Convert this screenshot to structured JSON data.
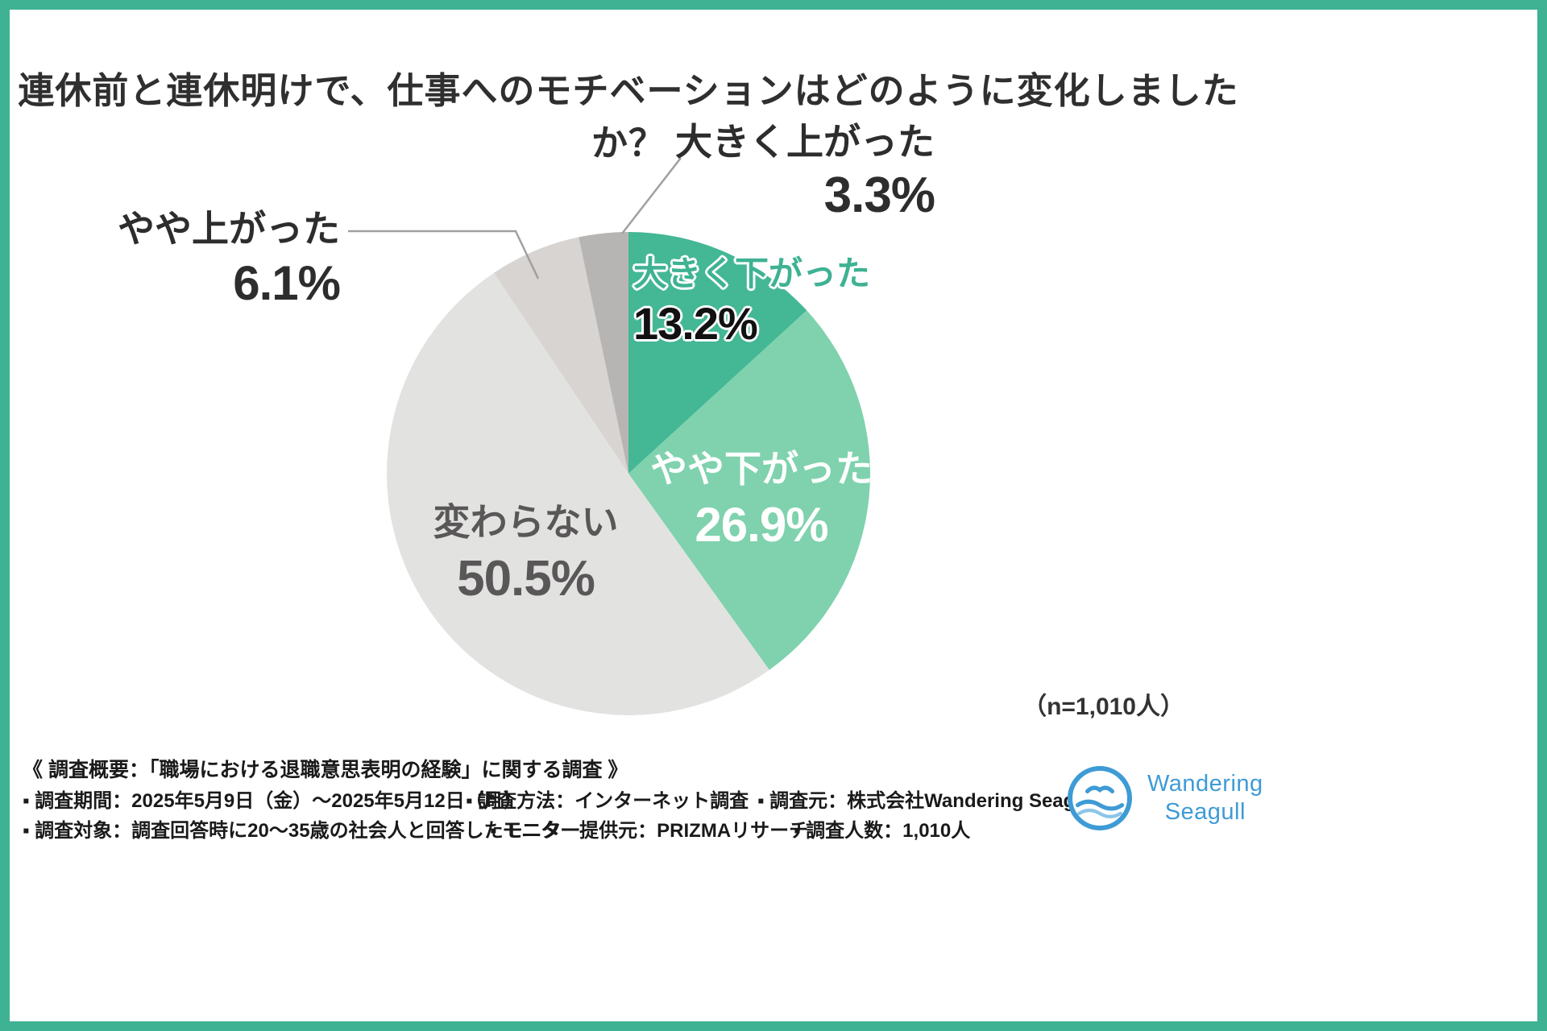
{
  "chart_data": {
    "type": "pie",
    "title": "連休前と連休明けで、仕事へのモチベーションはどのように変化しましたか？",
    "sample_size_label": "（n=1,010人）",
    "start_angle_deg": -90,
    "direction": "clockwise",
    "segments": [
      {
        "id": "ookiku-sagatta",
        "label": "大きく下がった",
        "value": 13.2,
        "value_label": "13.2%",
        "color": "#44b795"
      },
      {
        "id": "yaya-sagatta",
        "label": "やや下がった",
        "value": 26.9,
        "value_label": "26.9%",
        "color": "#7fd2ad"
      },
      {
        "id": "kawaranai",
        "label": "変わらない",
        "value": 50.5,
        "value_label": "50.5%",
        "color": "#e2e2e1"
      },
      {
        "id": "yaya-agatta",
        "label": "やや上がった",
        "value": 6.1,
        "value_label": "6.1%",
        "color": "#d8d4d2"
      },
      {
        "id": "ookiku-agatta",
        "label": "大きく上がった",
        "value": 3.3,
        "value_label": "3.3%",
        "color": "#b7b5b4"
      }
    ]
  },
  "footer": {
    "heading": "《 調査概要：「職場における退職意思表明の経験」に関する調査 》",
    "items": [
      "▪ 調査期間：2025年5月9日（金）〜2025年5月12日（月）",
      "▪ 調査方法：インターネット調査",
      "▪ 調査元：株式会社Wandering Seagull",
      "▪ 調査対象：調査回答時に20〜35歳の社会人と回答したモニター",
      "▪ モニター提供元：PRIZMAリサーチ",
      "▪ 調査人数：1,010人"
    ]
  },
  "logo": {
    "line1": "Wandering",
    "line2": "Seagull"
  },
  "colors": {
    "frame": "#3eb293",
    "accent_green": "#3eb293",
    "logo_blue": "#3e9bd5"
  }
}
